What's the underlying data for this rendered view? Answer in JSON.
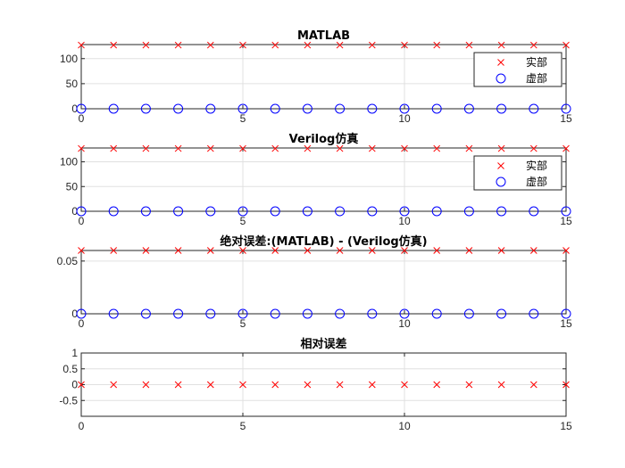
{
  "figure": {
    "background": "#ffffff",
    "grid_color": "#e0e0e0",
    "axis_color": "#262626"
  },
  "chart_data": [
    {
      "type": "scatter",
      "title": "MATLAB",
      "xlim": [
        0,
        15
      ],
      "ylim": [
        0,
        128
      ],
      "xticks": [
        0,
        5,
        10,
        15
      ],
      "yticks": [
        0,
        50,
        100
      ],
      "grid": true,
      "legend": {
        "position": "top-right",
        "entries": [
          "实部",
          "虚部"
        ]
      },
      "series": [
        {
          "name": "实部",
          "marker": "x",
          "color": "#ff0000",
          "x": [
            0,
            1,
            2,
            3,
            4,
            5,
            6,
            7,
            8,
            9,
            10,
            11,
            12,
            13,
            14,
            15
          ],
          "y": [
            127,
            127,
            127,
            127,
            127,
            127,
            127,
            127,
            127,
            127,
            127,
            127,
            127,
            127,
            127,
            127
          ]
        },
        {
          "name": "虚部",
          "marker": "o",
          "color": "#0000ff",
          "x": [
            0,
            1,
            2,
            3,
            4,
            5,
            6,
            7,
            8,
            9,
            10,
            11,
            12,
            13,
            14,
            15
          ],
          "y": [
            0,
            0,
            0,
            0,
            0,
            0,
            0,
            0,
            0,
            0,
            0,
            0,
            0,
            0,
            0,
            0
          ]
        }
      ]
    },
    {
      "type": "scatter",
      "title": "Verilog仿真",
      "xlim": [
        0,
        15
      ],
      "ylim": [
        0,
        128
      ],
      "xticks": [
        0,
        5,
        10,
        15
      ],
      "yticks": [
        0,
        50,
        100
      ],
      "grid": true,
      "legend": {
        "position": "top-right",
        "entries": [
          "实部",
          "虚部"
        ]
      },
      "series": [
        {
          "name": "实部",
          "marker": "x",
          "color": "#ff0000",
          "x": [
            0,
            1,
            2,
            3,
            4,
            5,
            6,
            7,
            8,
            9,
            10,
            11,
            12,
            13,
            14,
            15
          ],
          "y": [
            127,
            127,
            127,
            127,
            127,
            127,
            127,
            127,
            127,
            127,
            127,
            127,
            127,
            127,
            127,
            127
          ]
        },
        {
          "name": "虚部",
          "marker": "o",
          "color": "#0000ff",
          "x": [
            0,
            1,
            2,
            3,
            4,
            5,
            6,
            7,
            8,
            9,
            10,
            11,
            12,
            13,
            14,
            15
          ],
          "y": [
            0,
            0,
            0,
            0,
            0,
            0,
            0,
            0,
            0,
            0,
            0,
            0,
            0,
            0,
            0,
            0
          ]
        }
      ]
    },
    {
      "type": "scatter",
      "title": "绝对误差:(MATLAB) - (Verilog仿真)",
      "xlim": [
        0,
        15
      ],
      "ylim": [
        0,
        0.06
      ],
      "xticks": [
        0,
        5,
        10,
        15
      ],
      "yticks": [
        0,
        0.05
      ],
      "grid": true,
      "series": [
        {
          "marker": "x",
          "color": "#ff0000",
          "x": [
            0,
            1,
            2,
            3,
            4,
            5,
            6,
            7,
            8,
            9,
            10,
            11,
            12,
            13,
            14,
            15
          ],
          "y": [
            0.06,
            0.06,
            0.06,
            0.06,
            0.06,
            0.06,
            0.06,
            0.06,
            0.06,
            0.06,
            0.06,
            0.06,
            0.06,
            0.06,
            0.06,
            0.06
          ]
        },
        {
          "marker": "o",
          "color": "#0000ff",
          "x": [
            0,
            1,
            2,
            3,
            4,
            5,
            6,
            7,
            8,
            9,
            10,
            11,
            12,
            13,
            14,
            15
          ],
          "y": [
            0,
            0,
            0,
            0,
            0,
            0,
            0,
            0,
            0,
            0,
            0,
            0,
            0,
            0,
            0,
            0
          ]
        }
      ]
    },
    {
      "type": "scatter",
      "title": "相对误差",
      "xlim": [
        0,
        15
      ],
      "ylim": [
        -1,
        1
      ],
      "xticks": [
        0,
        5,
        10,
        15
      ],
      "yticks": [
        -0.5,
        0,
        0.5,
        1
      ],
      "grid": true,
      "series": [
        {
          "marker": "x",
          "color": "#ff0000",
          "x": [
            0,
            1,
            2,
            3,
            4,
            5,
            6,
            7,
            8,
            9,
            10,
            11,
            12,
            13,
            14,
            15
          ],
          "y": [
            0,
            0,
            0,
            0,
            0,
            0,
            0,
            0,
            0,
            0,
            0,
            0,
            0,
            0,
            0,
            0
          ]
        }
      ]
    }
  ]
}
